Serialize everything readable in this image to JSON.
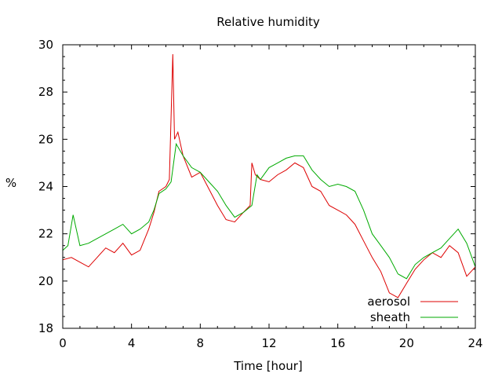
{
  "chart_data": {
    "type": "line",
    "title": "Relative humidity",
    "xlabel": "Time [hour]",
    "ylabel": "%",
    "xlim": [
      0,
      24
    ],
    "ylim": [
      18,
      30
    ],
    "xticks": [
      0,
      4,
      8,
      12,
      16,
      20,
      24
    ],
    "yticks": [
      18,
      20,
      22,
      24,
      26,
      28,
      30
    ],
    "grid": false,
    "legend_position": "bottom-right",
    "series": [
      {
        "name": "aerosol",
        "color": "#dd0000",
        "x": [
          0,
          0.5,
          1,
          1.5,
          2,
          2.5,
          3,
          3.5,
          4,
          4.5,
          5,
          5.3,
          5.6,
          6,
          6.2,
          6.4,
          6.5,
          6.7,
          7,
          7.5,
          8,
          8.5,
          9,
          9.5,
          10,
          10.5,
          10.9,
          11,
          11.2,
          11.5,
          12,
          12.5,
          13,
          13.5,
          14,
          14.5,
          15,
          15.5,
          16,
          16.5,
          17,
          17.5,
          18,
          18.5,
          19,
          19.5,
          20,
          20.5,
          21,
          21.5,
          22,
          22.5,
          23,
          23.5,
          24
        ],
        "y": [
          20.9,
          21.0,
          20.8,
          20.6,
          21.0,
          21.4,
          21.2,
          21.6,
          21.1,
          21.3,
          22.2,
          22.9,
          23.8,
          24.0,
          24.3,
          29.6,
          26.0,
          26.3,
          25.3,
          24.4,
          24.6,
          23.9,
          23.2,
          22.6,
          22.5,
          22.9,
          23.2,
          25.0,
          24.5,
          24.3,
          24.2,
          24.5,
          24.7,
          25.0,
          24.8,
          24.0,
          23.8,
          23.2,
          23.0,
          22.8,
          22.4,
          21.7,
          21.0,
          20.4,
          19.5,
          19.3,
          19.9,
          20.5,
          20.9,
          21.2,
          21.0,
          21.5,
          21.2,
          20.2,
          20.6
        ]
      },
      {
        "name": "sheath",
        "color": "#00aa00",
        "x": [
          0,
          0.3,
          0.6,
          1,
          1.5,
          2,
          2.5,
          3,
          3.5,
          4,
          4.5,
          5,
          5.3,
          5.6,
          6,
          6.3,
          6.6,
          7,
          7.5,
          8,
          8.5,
          9,
          9.5,
          10,
          10.5,
          11,
          11.3,
          11.5,
          12,
          12.5,
          13,
          13.5,
          14,
          14.5,
          15,
          15.5,
          16,
          16.5,
          17,
          17.5,
          18,
          18.5,
          19,
          19.5,
          20,
          20.5,
          21,
          21.5,
          22,
          22.5,
          23,
          23.5,
          24
        ],
        "y": [
          21.3,
          21.5,
          22.8,
          21.5,
          21.6,
          21.8,
          22.0,
          22.2,
          22.4,
          22.0,
          22.2,
          22.5,
          23.0,
          23.7,
          23.9,
          24.2,
          25.8,
          25.3,
          24.8,
          24.6,
          24.2,
          23.8,
          23.2,
          22.7,
          22.9,
          23.2,
          24.5,
          24.3,
          24.8,
          25.0,
          25.2,
          25.3,
          25.3,
          24.7,
          24.3,
          24.0,
          24.1,
          24.0,
          23.8,
          23.0,
          22.0,
          21.5,
          21.0,
          20.3,
          20.1,
          20.7,
          21.0,
          21.2,
          21.4,
          21.8,
          22.2,
          21.6,
          20.6
        ]
      }
    ]
  }
}
